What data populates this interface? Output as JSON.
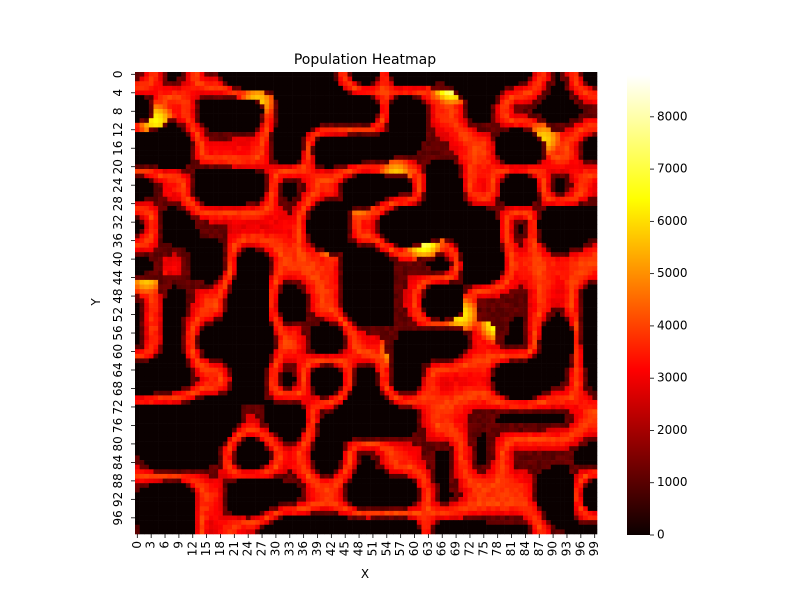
{
  "chart_data": {
    "type": "heatmap",
    "title": "Population Heatmap",
    "xlabel": "X",
    "ylabel": "Y",
    "grid_size": 100,
    "x_tick_labels": [
      "0",
      "3",
      "6",
      "9",
      "12",
      "15",
      "18",
      "21",
      "24",
      "27",
      "30",
      "33",
      "36",
      "39",
      "42",
      "45",
      "48",
      "51",
      "54",
      "57",
      "60",
      "63",
      "66",
      "69",
      "72",
      "75",
      "78",
      "81",
      "84",
      "87",
      "90",
      "93",
      "96",
      "99"
    ],
    "y_tick_labels": [
      "0",
      "4",
      "8",
      "12",
      "16",
      "20",
      "24",
      "28",
      "32",
      "36",
      "40",
      "44",
      "48",
      "52",
      "56",
      "60",
      "64",
      "68",
      "72",
      "76",
      "80",
      "84",
      "88",
      "92",
      "96"
    ],
    "colorbar": {
      "colormap": "hot",
      "range": [
        0,
        8800
      ],
      "tick_labels": [
        "0",
        "1000",
        "2000",
        "3000",
        "4000",
        "5000",
        "6000",
        "7000",
        "8000"
      ]
    },
    "legend": "colorbar-right",
    "grid": false,
    "description_of_values": "Dense 100x100 grid; values read approximately from colors. Dark cells ~0, red network ~2500-4000, yellow hotspots ~6000-8000.",
    "hotspots": [
      {
        "x": 68,
        "y": 2,
        "value": 8500
      },
      {
        "x": 62,
        "y": 36,
        "value": 7500
      },
      {
        "x": 78,
        "y": 54,
        "value": 7000
      },
      {
        "x": 42,
        "y": 36,
        "value": 6500
      },
      {
        "x": 88,
        "y": 14,
        "value": 6000
      },
      {
        "x": 4,
        "y": 10,
        "value": 6500
      },
      {
        "x": 56,
        "y": 22,
        "value": 6000
      },
      {
        "x": 26,
        "y": 6,
        "value": 6000
      },
      {
        "x": 2,
        "y": 44,
        "value": 6000
      },
      {
        "x": 70,
        "y": 52,
        "value": 6500
      },
      {
        "x": 56,
        "y": 60,
        "value": 6000
      },
      {
        "x": 48,
        "y": 28,
        "value": 5500
      },
      {
        "x": 20,
        "y": 24,
        "value": 4000
      },
      {
        "x": 46,
        "y": 72,
        "value": 3500
      },
      {
        "x": 94,
        "y": 28,
        "value": 3000
      }
    ]
  }
}
